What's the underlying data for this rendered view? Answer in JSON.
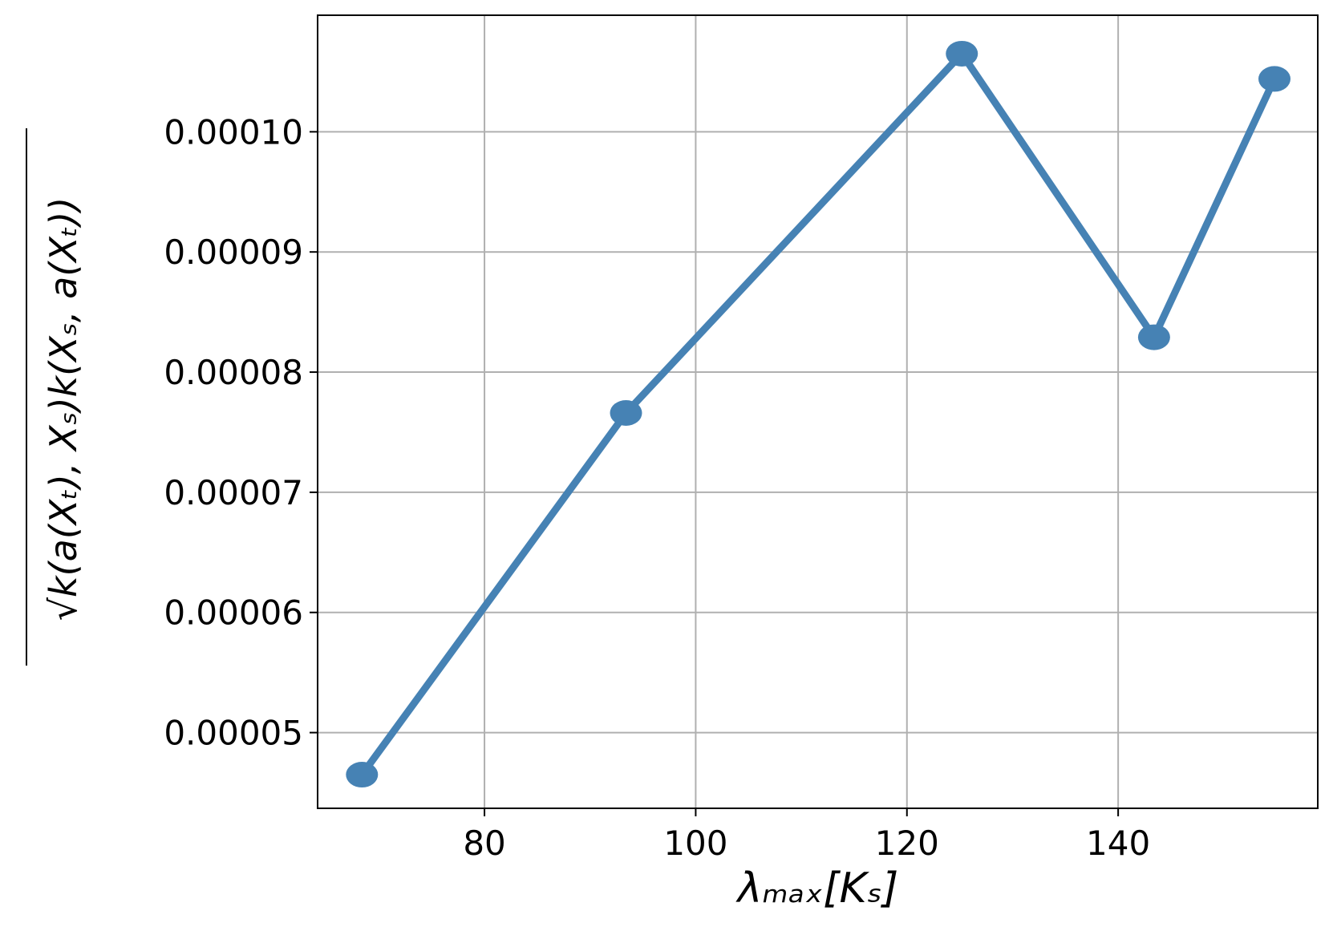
{
  "chart_data": {
    "type": "line",
    "xlabel": "λₘₐₓ[Kₛ]",
    "ylabel": "√k(a(Xₜ), Xₛ)k(Xₛ, a(Xₜ))",
    "x": [
      68.4,
      93.4,
      125.2,
      143.4,
      154.8
    ],
    "series": [
      {
        "color": "#4682b4",
        "values": [
          4.65e-05,
          7.66e-05,
          0.0001065,
          8.29e-05,
          0.0001044
        ]
      }
    ],
    "xlim": [
      64.2,
      158.9
    ],
    "xticks": [
      80,
      100,
      120,
      140
    ],
    "ylim": [
      4.37e-05,
      0.0001097
    ],
    "yticks": [
      {
        "value": 5e-05,
        "label": "0.00005"
      },
      {
        "value": 6e-05,
        "label": "0.00006"
      },
      {
        "value": 7e-05,
        "label": "0.00007"
      },
      {
        "value": 8e-05,
        "label": "0.00008"
      },
      {
        "value": 9e-05,
        "label": "0.00009"
      },
      {
        "value": 0.0001,
        "label": "0.00010"
      }
    ],
    "grid": true
  }
}
